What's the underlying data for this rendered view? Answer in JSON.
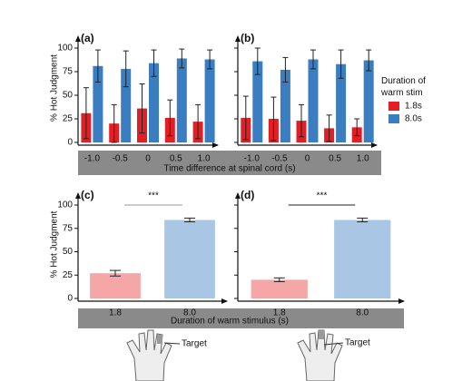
{
  "chart_data": [
    {
      "type": "bar",
      "title": "(a)",
      "ylabel": "% Hot Judgment",
      "x_label": "Time difference at spinal cord (s)",
      "legend_title": "Duration of warm stim",
      "categories": [
        "-1.0",
        "-0.5",
        "0",
        "0.5",
        "1.0"
      ],
      "series": [
        {
          "name": "1.8s",
          "color": "#e31e24",
          "values": [
            31,
            20,
            36,
            26,
            22
          ],
          "errors": [
            27,
            20,
            26,
            19,
            18
          ]
        },
        {
          "name": "8.0s",
          "color": "#3a7dc0",
          "values": [
            81,
            78,
            84,
            89,
            88
          ],
          "errors": [
            17,
            19,
            14,
            10,
            10
          ]
        }
      ],
      "ylim": [
        0,
        100
      ],
      "yticks": [
        0,
        25,
        50,
        75,
        100
      ]
    },
    {
      "type": "bar",
      "title": "(b)",
      "categories": [
        "-1.0",
        "-0.5",
        "0",
        "0.5",
        "1.0"
      ],
      "series": [
        {
          "name": "1.8s",
          "color": "#e31e24",
          "values": [
            26,
            25,
            23,
            15,
            16
          ],
          "errors": [
            23,
            23,
            17,
            14,
            9
          ]
        },
        {
          "name": "8.0s",
          "color": "#3a7dc0",
          "values": [
            86,
            77,
            88,
            83,
            87
          ],
          "errors": [
            14,
            13,
            10,
            15,
            11
          ]
        }
      ],
      "ylim": [
        0,
        100
      ],
      "yticks": [
        0,
        25,
        50,
        75,
        100
      ]
    },
    {
      "type": "bar",
      "title": "(c)",
      "ylabel": "% Hot Judgment",
      "x_label": "Duration of warm stimulus (s)",
      "annotation": "***",
      "categories": [
        "1.8",
        "8.0"
      ],
      "values": [
        27,
        84
      ],
      "errors": [
        3,
        2
      ],
      "colors": [
        "#f4a7a6",
        "#a9c7e5"
      ],
      "ylim": [
        0,
        100
      ],
      "yticks": [
        0,
        25,
        50,
        75,
        100
      ]
    },
    {
      "type": "bar",
      "title": "(d)",
      "annotation": "***",
      "categories": [
        "1.8",
        "8.0"
      ],
      "values": [
        20,
        84
      ],
      "errors": [
        2,
        2
      ],
      "colors": [
        "#f4a7a6",
        "#a9c7e5"
      ],
      "ylim": [
        0,
        100
      ],
      "yticks": [
        0,
        25,
        50,
        75,
        100
      ]
    }
  ],
  "hands": [
    {
      "label": "Target"
    },
    {
      "label": "Target"
    }
  ]
}
